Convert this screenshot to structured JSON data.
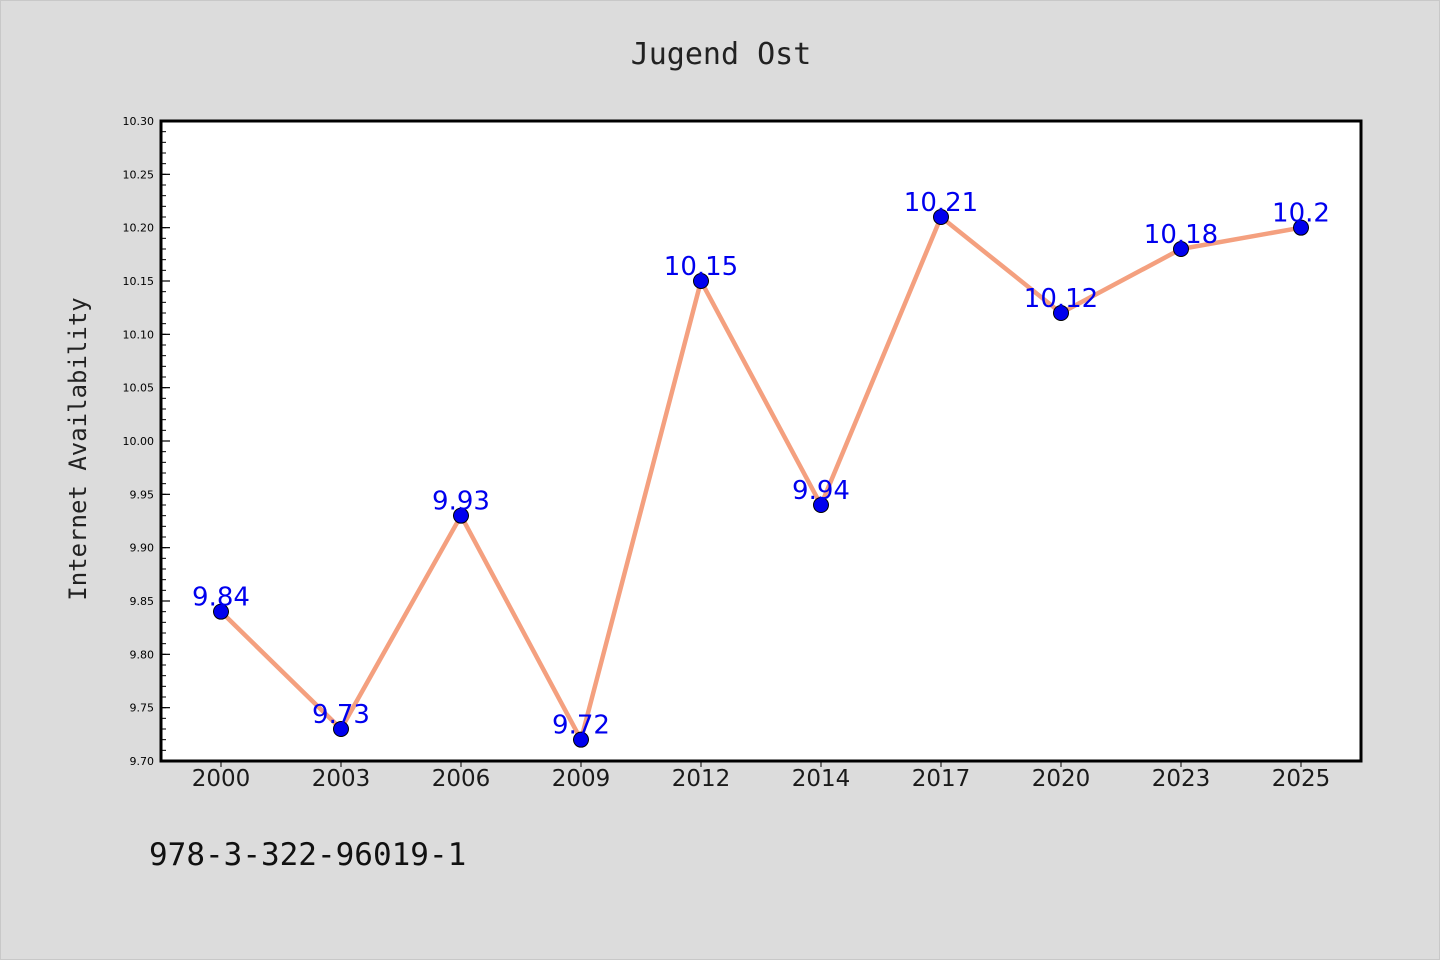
{
  "colors": {
    "background": "#dcdcdc",
    "plot_background": "#ffffff",
    "line": "#f4a07f",
    "marker": "#0000ee",
    "data_label": "#0000ee"
  },
  "footer_text": "978-3-322-96019-1",
  "chart_data": {
    "type": "line",
    "title": "Jugend Ost",
    "xlabel": "",
    "ylabel": "Internet Availability",
    "categories": [
      "2000",
      "2003",
      "2006",
      "2009",
      "2012",
      "2014",
      "2017",
      "2020",
      "2023",
      "2025"
    ],
    "series": [
      {
        "values": [
          9.84,
          9.73,
          9.93,
          9.72,
          10.15,
          9.94,
          10.21,
          10.12,
          10.18,
          10.2
        ],
        "data_labels": [
          "9.84",
          "9.73",
          "9.93",
          "9.72",
          "10.15",
          "9.94",
          "10.21",
          "10.12",
          "10.18",
          "10.2"
        ]
      }
    ],
    "ylim": [
      9.7,
      10.3
    ],
    "yticks": [
      "9.70",
      "9.75",
      "9.80",
      "9.85",
      "9.90",
      "9.95",
      "10.00",
      "10.05",
      "10.10",
      "10.15",
      "10.20",
      "10.25",
      "10.30"
    ],
    "grid": false,
    "legend": "none"
  }
}
